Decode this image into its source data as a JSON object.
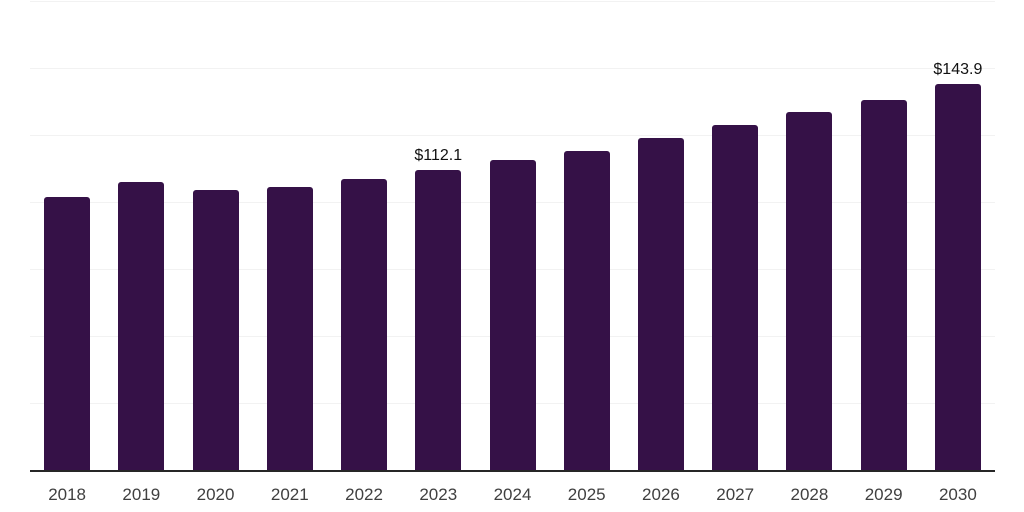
{
  "chart_data": {
    "type": "bar",
    "title": "",
    "xlabel": "",
    "ylabel": "",
    "categories": [
      "2018",
      "2019",
      "2020",
      "2021",
      "2022",
      "2023",
      "2024",
      "2025",
      "2026",
      "2027",
      "2028",
      "2029",
      "2030"
    ],
    "values": [
      101.7,
      107.5,
      104.6,
      105.6,
      108.6,
      112.1,
      115.8,
      119.0,
      124.0,
      128.7,
      133.4,
      138.1,
      143.9
    ],
    "bar_labels": [
      "",
      "",
      "",
      "",
      "",
      "$112.1",
      "",
      "",
      "",
      "",
      "",
      "",
      "$143.9"
    ],
    "ylim": [
      0,
      175
    ],
    "gridline_values": [
      25,
      50,
      75,
      100,
      125,
      150,
      175
    ],
    "grid": "horizontal",
    "legend_position": "none",
    "y_axis_labels_visible": false,
    "colors": {
      "bar": "#351147",
      "value_label": "#111111",
      "tick_label": "#404040",
      "axis_line": "#262626",
      "gridline": "#f2f2f2",
      "background": "#ffffff"
    }
  }
}
